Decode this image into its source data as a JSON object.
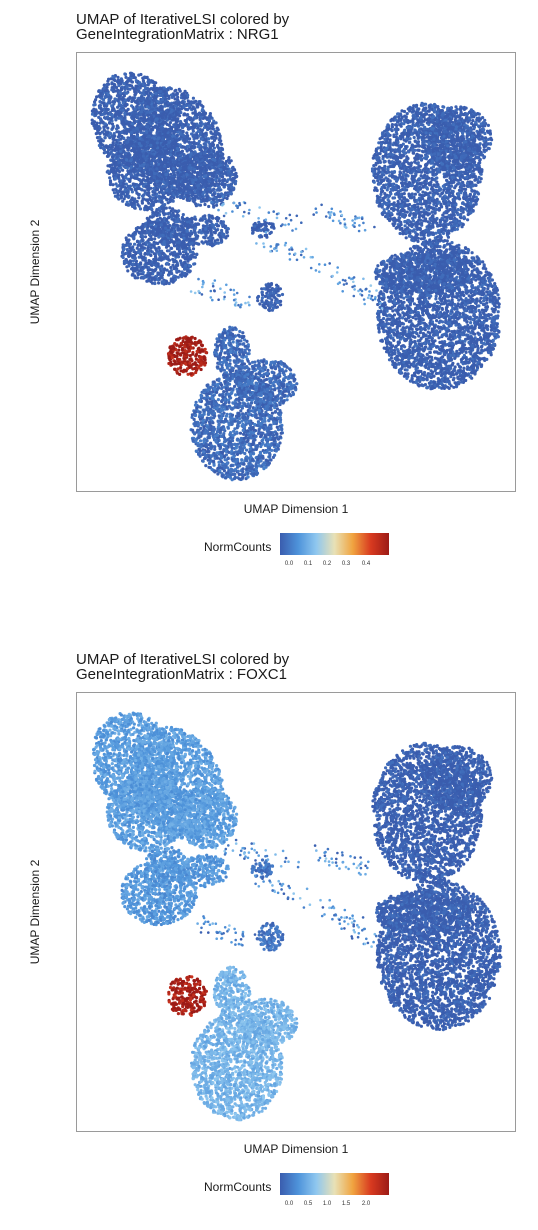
{
  "colors": {
    "scale": [
      "#3A5DAE",
      "#4E93DA",
      "#8FC7EF",
      "#E8E1B6",
      "#F0A440",
      "#D83A20",
      "#9C1B16"
    ],
    "frame": "#9a9a9a",
    "background": "#ffffff"
  },
  "chart_data": [
    {
      "type": "scatter",
      "title_line1": "UMAP of IterativeLSI colored by",
      "title_line2": "GeneIntegrationMatrix : NRG1",
      "xlabel": "UMAP Dimension 1",
      "ylabel": "UMAP Dimension 2",
      "legend_title": "NormCounts",
      "legend_ticks": [
        "0.0",
        "0.1",
        "0.2",
        "0.3",
        "0.4"
      ],
      "color_range": [
        0,
        0.45
      ],
      "grid": false,
      "legend_position": "bottom",
      "clusters": [
        {
          "id": "top-left",
          "value": 0.0
        },
        {
          "id": "left-middle",
          "value": 0.0
        },
        {
          "id": "small-middle",
          "value": 0.0
        },
        {
          "id": "bottom-hot",
          "value": 0.45
        },
        {
          "id": "bottom-blob",
          "value": 0.02
        },
        {
          "id": "right-top",
          "value": 0.0
        },
        {
          "id": "right-bottom",
          "value": 0.0
        }
      ]
    },
    {
      "type": "scatter",
      "title_line1": "UMAP of IterativeLSI colored by",
      "title_line2": "GeneIntegrationMatrix : FOXC1",
      "xlabel": "UMAP Dimension 1",
      "ylabel": "UMAP Dimension 2",
      "legend_title": "NormCounts",
      "legend_ticks": [
        "0.0",
        "0.5",
        "1.0",
        "1.5",
        "2.0"
      ],
      "color_range": [
        0,
        2.2
      ],
      "grid": false,
      "legend_position": "bottom",
      "clusters": [
        {
          "id": "top-left",
          "value": 0.45
        },
        {
          "id": "left-middle",
          "value": 0.4
        },
        {
          "id": "small-middle",
          "value": 0.15
        },
        {
          "id": "bottom-hot",
          "value": 2.2
        },
        {
          "id": "bottom-blob",
          "value": 0.6
        },
        {
          "id": "right-top",
          "value": 0.0
        },
        {
          "id": "right-bottom",
          "value": 0.0
        }
      ]
    }
  ]
}
